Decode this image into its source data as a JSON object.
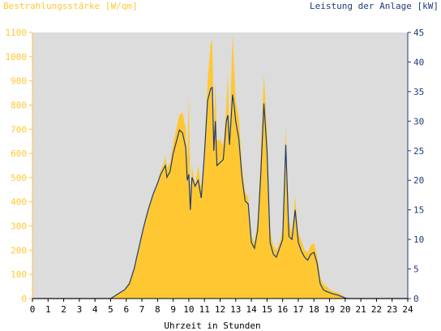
{
  "chart_data": {
    "type": "area",
    "left_axis_title": "Bestrahlungsstärke [W/qm]",
    "right_axis_title": "Leistung der Anlage [kW]",
    "xlabel": "Uhrzeit in Stunden",
    "xlim": [
      0,
      24
    ],
    "ylim_left": [
      0,
      1100
    ],
    "ylim_right": [
      0,
      45
    ],
    "xticks": [
      "0",
      "1",
      "2",
      "3",
      "4",
      "5",
      "6",
      "7",
      "8",
      "9",
      "10",
      "11",
      "12",
      "13",
      "14",
      "15",
      "16",
      "17",
      "18",
      "19",
      "20",
      "21",
      "22",
      "23",
      "24"
    ],
    "yticks_left": [
      "0",
      "100",
      "200",
      "300",
      "400",
      "500",
      "600",
      "700",
      "800",
      "900",
      "1000",
      "1100"
    ],
    "yticks_right": [
      "0",
      "5",
      "10",
      "15",
      "20",
      "25",
      "30",
      "35",
      "40",
      "45"
    ],
    "grid": false,
    "series": [
      {
        "name": "Bestrahlungsstärke [W/qm]",
        "axis": "left",
        "color": "#ffc832",
        "x": [
          0,
          5.0,
          5.3,
          5.6,
          5.9,
          6.2,
          6.5,
          6.8,
          7.1,
          7.4,
          7.7,
          8.0,
          8.2,
          8.4,
          8.5,
          8.6,
          8.8,
          9.0,
          9.2,
          9.4,
          9.6,
          9.8,
          9.9,
          10.0,
          10.1,
          10.2,
          10.4,
          10.6,
          10.8,
          11.0,
          11.2,
          11.4,
          11.5,
          11.6,
          11.7,
          11.8,
          12.0,
          12.2,
          12.4,
          12.5,
          12.6,
          12.8,
          12.9,
          13.0,
          13.2,
          13.4,
          13.6,
          13.8,
          14.0,
          14.2,
          14.4,
          14.6,
          14.8,
          15.0,
          15.2,
          15.4,
          15.6,
          15.8,
          16.0,
          16.2,
          16.4,
          16.6,
          16.8,
          17.0,
          17.2,
          17.4,
          17.6,
          17.8,
          18.0,
          18.2,
          18.4,
          18.6,
          18.8,
          19.0,
          19.2,
          19.5,
          19.8,
          20.0,
          20.2,
          24
        ],
        "values": [
          0,
          0,
          10,
          25,
          40,
          70,
          130,
          210,
          290,
          370,
          430,
          480,
          530,
          560,
          590,
          540,
          560,
          640,
          700,
          760,
          770,
          700,
          570,
          850,
          430,
          550,
          470,
          550,
          450,
          600,
          900,
          1050,
          1070,
          700,
          900,
          650,
          660,
          630,
          800,
          930,
          680,
          1100,
          950,
          820,
          750,
          550,
          440,
          420,
          260,
          230,
          320,
          600,
          930,
          700,
          280,
          220,
          200,
          230,
          280,
          710,
          320,
          270,
          420,
          270,
          240,
          200,
          190,
          220,
          230,
          180,
          90,
          60,
          50,
          40,
          30,
          25,
          15,
          5,
          0,
          0
        ]
      },
      {
        "name": "Leistung der Anlage [kW]",
        "axis": "right",
        "color": "#1e3c78",
        "x": [
          0,
          5.0,
          5.3,
          5.6,
          5.9,
          6.2,
          6.5,
          6.8,
          7.1,
          7.4,
          7.7,
          8.0,
          8.2,
          8.4,
          8.5,
          8.6,
          8.8,
          9.0,
          9.2,
          9.4,
          9.6,
          9.8,
          9.9,
          10.0,
          10.1,
          10.2,
          10.4,
          10.6,
          10.8,
          11.0,
          11.2,
          11.4,
          11.5,
          11.6,
          11.7,
          11.8,
          12.0,
          12.2,
          12.4,
          12.5,
          12.6,
          12.8,
          12.9,
          13.0,
          13.2,
          13.4,
          13.6,
          13.8,
          14.0,
          14.2,
          14.4,
          14.6,
          14.8,
          15.0,
          15.2,
          15.4,
          15.6,
          15.8,
          16.0,
          16.2,
          16.4,
          16.6,
          16.8,
          17.0,
          17.2,
          17.4,
          17.6,
          17.8,
          18.0,
          18.2,
          18.4,
          18.6,
          18.8,
          19.0,
          19.2,
          19.5,
          19.8,
          20.0,
          20.2,
          24
        ],
        "values": [
          0,
          0,
          0.5,
          1.0,
          1.5,
          2.5,
          5.0,
          8.5,
          12.0,
          15.0,
          17.5,
          19.5,
          21.0,
          22.0,
          22.5,
          20.5,
          21.5,
          24.5,
          26.5,
          28.5,
          28.0,
          25.5,
          20.0,
          21.0,
          15.0,
          20.5,
          19.0,
          20.0,
          17.0,
          24.5,
          33.5,
          35.5,
          35.7,
          25.0,
          30.0,
          22.5,
          23.0,
          23.5,
          30.0,
          31.0,
          26.0,
          34.5,
          32.5,
          30.0,
          27.0,
          20.5,
          16.5,
          16.0,
          9.5,
          8.5,
          11.5,
          21.0,
          33.0,
          25.0,
          9.5,
          7.5,
          7.0,
          8.5,
          10.0,
          26.0,
          10.5,
          10.0,
          15.0,
          9.5,
          8.0,
          7.0,
          6.5,
          7.5,
          7.8,
          6.0,
          2.5,
          1.5,
          1.2,
          1.0,
          0.8,
          0.6,
          0.3,
          0.1,
          0,
          0
        ]
      }
    ]
  }
}
